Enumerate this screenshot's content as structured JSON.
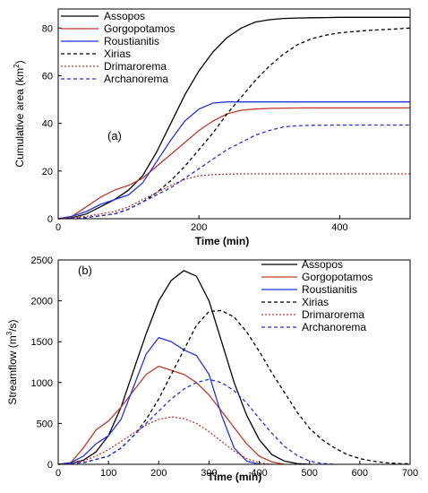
{
  "chart_data": [
    {
      "type": "line",
      "panel_label": "(a)",
      "xlabel": "Time (min)",
      "ylabel": "Cumulative area (km",
      "ylabel_sup": "2",
      "ylabel_tail": ")",
      "xlim": [
        0,
        500
      ],
      "ylim": [
        0,
        88
      ],
      "xticks": [
        0,
        200,
        400
      ],
      "yticks": [
        0,
        20,
        40,
        60,
        80
      ],
      "legend_position": "top-left",
      "series": [
        {
          "name": "Assopos",
          "color": "#000000",
          "dash": "solid",
          "x": [
            0,
            20,
            40,
            60,
            80,
            100,
            120,
            140,
            160,
            180,
            200,
            220,
            240,
            260,
            280,
            300,
            320,
            340,
            360,
            380,
            400,
            450,
            500
          ],
          "y": [
            0,
            0.5,
            2,
            5,
            8,
            12,
            18,
            28,
            40,
            52,
            62,
            70,
            76,
            80,
            82.5,
            83.5,
            84,
            84.2,
            84.3,
            84.4,
            84.5,
            84.5,
            84.5
          ]
        },
        {
          "name": "Gorgopotamos",
          "color": "#c0392b",
          "dash": "solid",
          "x": [
            0,
            20,
            40,
            60,
            80,
            100,
            120,
            140,
            160,
            180,
            200,
            220,
            240,
            260,
            280,
            300,
            350,
            400,
            450,
            500
          ],
          "y": [
            0,
            1,
            5,
            9,
            12,
            14,
            17,
            22,
            27,
            32,
            37,
            41,
            44,
            45.5,
            46,
            46.3,
            46.5,
            46.5,
            46.5,
            46.5
          ]
        },
        {
          "name": "Roustianitis",
          "color": "#2233dd",
          "dash": "solid",
          "x": [
            0,
            20,
            40,
            60,
            80,
            100,
            120,
            140,
            160,
            180,
            200,
            220,
            240,
            260,
            280,
            300,
            350,
            400,
            450,
            500
          ],
          "y": [
            0,
            1,
            3,
            6,
            8,
            10,
            15,
            24,
            33,
            41,
            46,
            48.5,
            49,
            49,
            49,
            49,
            49,
            49,
            49,
            49
          ]
        },
        {
          "name": "Xirias",
          "color": "#000000",
          "dash": "dash",
          "x": [
            0,
            40,
            80,
            100,
            120,
            140,
            160,
            180,
            200,
            220,
            240,
            260,
            280,
            300,
            320,
            340,
            360,
            380,
            400,
            420,
            440,
            460,
            480,
            500
          ],
          "y": [
            0,
            0.5,
            2,
            4,
            7,
            11,
            16,
            22,
            29,
            36,
            44,
            51,
            58,
            64,
            69,
            73,
            75.5,
            77,
            78,
            78.5,
            79,
            79.3,
            79.6,
            80
          ]
        },
        {
          "name": "Drimarorema",
          "color": "#c0392b",
          "dash": "dot",
          "x": [
            0,
            40,
            80,
            100,
            120,
            140,
            160,
            180,
            200,
            220,
            240,
            260,
            280,
            300,
            350,
            400,
            450,
            500
          ],
          "y": [
            0,
            1,
            3,
            5,
            8,
            11,
            14,
            16.5,
            18,
            18.5,
            18.7,
            18.8,
            18.8,
            18.8,
            18.8,
            18.8,
            18.8,
            18.8
          ]
        },
        {
          "name": "Archanorema",
          "color": "#2233dd",
          "dash": "dash",
          "x": [
            0,
            40,
            80,
            100,
            120,
            140,
            160,
            180,
            200,
            220,
            240,
            260,
            280,
            300,
            320,
            340,
            360,
            400,
            450,
            500
          ],
          "y": [
            0,
            0.5,
            2,
            4,
            7,
            10,
            13,
            17,
            21,
            25,
            29,
            32,
            35,
            37,
            38.5,
            39,
            39.2,
            39.3,
            39.3,
            39.3
          ]
        }
      ]
    },
    {
      "type": "line",
      "panel_label": "(b)",
      "xlabel": "Time (min)",
      "ylabel": "Streamflow (m",
      "ylabel_sup": "3",
      "ylabel_tail": "/s)",
      "xlim": [
        0,
        700
      ],
      "ylim": [
        0,
        2500
      ],
      "xticks": [
        0,
        100,
        200,
        300,
        400,
        500,
        600,
        700
      ],
      "yticks": [
        0,
        500,
        1000,
        1500,
        2000,
        2500
      ],
      "legend_position": "top-right",
      "series": [
        {
          "name": "Assopos",
          "color": "#000000",
          "dash": "solid",
          "x": [
            0,
            25,
            50,
            75,
            100,
            125,
            150,
            175,
            200,
            225,
            250,
            275,
            300,
            325,
            350,
            375,
            400,
            425,
            450,
            475,
            500
          ],
          "y": [
            0,
            10,
            50,
            150,
            350,
            700,
            1150,
            1600,
            2000,
            2250,
            2370,
            2300,
            2000,
            1500,
            1000,
            600,
            300,
            120,
            40,
            10,
            0
          ]
        },
        {
          "name": "Gorgopotamos",
          "color": "#c0392b",
          "dash": "solid",
          "x": [
            0,
            25,
            50,
            75,
            100,
            125,
            150,
            175,
            200,
            225,
            250,
            275,
            300,
            325,
            350,
            375,
            400,
            425,
            450
          ],
          "y": [
            0,
            20,
            200,
            420,
            530,
            700,
            900,
            1100,
            1200,
            1150,
            1100,
            1000,
            850,
            650,
            450,
            250,
            100,
            30,
            0
          ]
        },
        {
          "name": "Roustianitis",
          "color": "#2233dd",
          "dash": "solid",
          "x": [
            0,
            25,
            50,
            75,
            100,
            125,
            150,
            175,
            200,
            225,
            250,
            275,
            300,
            325,
            350,
            375,
            400
          ],
          "y": [
            0,
            20,
            100,
            250,
            350,
            550,
            950,
            1350,
            1550,
            1500,
            1400,
            1330,
            1100,
            600,
            200,
            40,
            0
          ]
        },
        {
          "name": "Xirias",
          "color": "#000000",
          "dash": "dash",
          "x": [
            0,
            50,
            100,
            125,
            150,
            175,
            200,
            225,
            250,
            275,
            300,
            325,
            350,
            375,
            400,
            425,
            450,
            475,
            500,
            525,
            550,
            575,
            600,
            625,
            650,
            675,
            700
          ],
          "y": [
            0,
            20,
            100,
            200,
            350,
            550,
            800,
            1100,
            1400,
            1700,
            1870,
            1880,
            1800,
            1620,
            1380,
            1120,
            880,
            640,
            440,
            300,
            200,
            120,
            70,
            40,
            20,
            10,
            5
          ]
        },
        {
          "name": "Drimarorema",
          "color": "#c0392b",
          "dash": "dot",
          "x": [
            0,
            25,
            50,
            75,
            100,
            125,
            150,
            175,
            200,
            225,
            250,
            275,
            300,
            325,
            350,
            375,
            400,
            425
          ],
          "y": [
            0,
            10,
            40,
            100,
            180,
            280,
            380,
            480,
            550,
            580,
            560,
            500,
            400,
            280,
            160,
            70,
            20,
            0
          ]
        },
        {
          "name": "Archanorema",
          "color": "#2233dd",
          "dash": "dash",
          "x": [
            0,
            50,
            100,
            125,
            150,
            175,
            200,
            225,
            250,
            275,
            300,
            325,
            350,
            375,
            400,
            425,
            450,
            475,
            500,
            525,
            550
          ],
          "y": [
            0,
            20,
            100,
            200,
            350,
            500,
            650,
            800,
            920,
            1000,
            1040,
            1000,
            900,
            750,
            560,
            380,
            220,
            110,
            40,
            10,
            0
          ]
        }
      ]
    }
  ]
}
